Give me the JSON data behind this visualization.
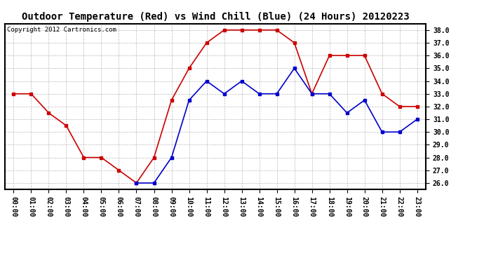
{
  "title": "Outdoor Temperature (Red) vs Wind Chill (Blue) (24 Hours) 20120223",
  "copyright_text": "Copyright 2012 Cartronics.com",
  "x_labels": [
    "00:00",
    "01:00",
    "02:00",
    "03:00",
    "04:00",
    "05:00",
    "06:00",
    "07:00",
    "08:00",
    "09:00",
    "10:00",
    "11:00",
    "12:00",
    "13:00",
    "14:00",
    "15:00",
    "16:00",
    "17:00",
    "18:00",
    "19:00",
    "20:00",
    "21:00",
    "22:00",
    "23:00"
  ],
  "red_temps": [
    33.0,
    33.0,
    31.5,
    30.5,
    28.0,
    28.0,
    27.0,
    26.0,
    28.0,
    32.5,
    35.0,
    37.0,
    38.0,
    38.0,
    38.0,
    38.0,
    37.0,
    33.0,
    36.0,
    36.0,
    36.0,
    33.0,
    32.0,
    32.0
  ],
  "blue_temps_raw": [
    null,
    null,
    null,
    null,
    null,
    null,
    null,
    26.0,
    26.0,
    28.0,
    32.5,
    34.0,
    33.0,
    34.0,
    33.0,
    33.0,
    35.0,
    33.0,
    33.0,
    31.5,
    32.5,
    30.0,
    30.0,
    31.0
  ],
  "red_color": "#cc0000",
  "blue_color": "#0000cc",
  "background_color": "#ffffff",
  "grid_color": "#aaaaaa",
  "ylim": [
    25.5,
    38.5
  ],
  "yticks": [
    26.0,
    27.0,
    28.0,
    29.0,
    30.0,
    31.0,
    32.0,
    33.0,
    34.0,
    35.0,
    36.0,
    37.0,
    38.0
  ],
  "title_fontsize": 10,
  "tick_fontsize": 7,
  "copyright_fontsize": 6.5
}
